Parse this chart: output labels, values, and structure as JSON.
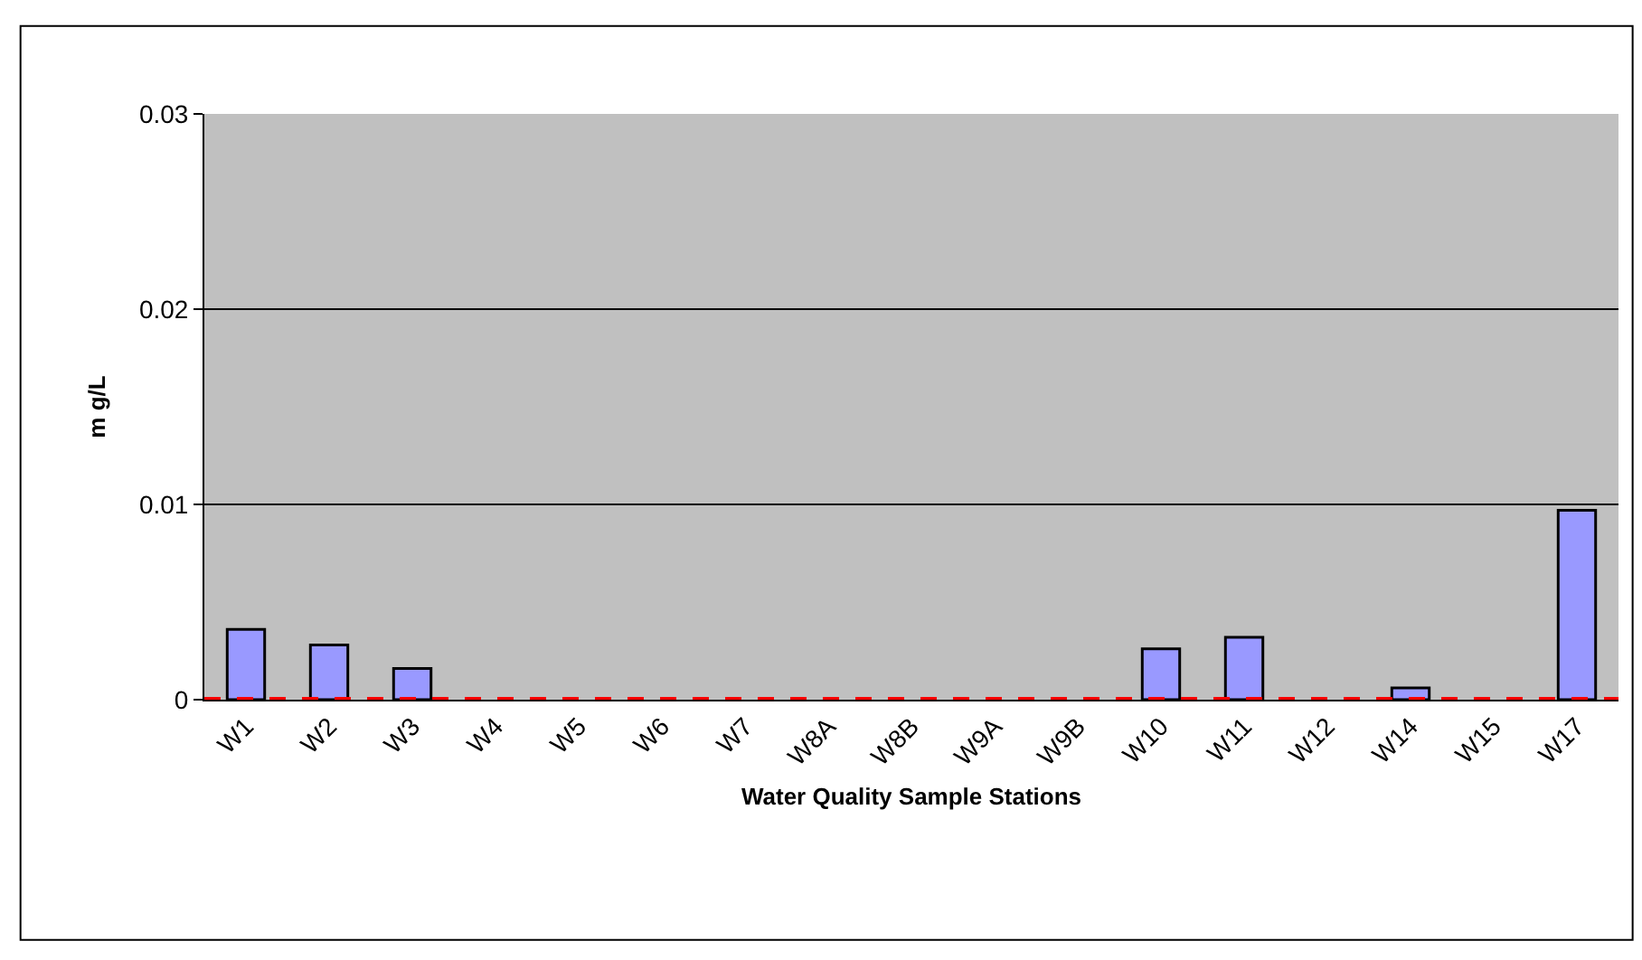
{
  "chart_data": {
    "type": "bar",
    "xlabel": "Water Quality Sample Stations",
    "ylabel": "m g/L",
    "categories": [
      "W1",
      "W2",
      "W3",
      "W4",
      "W5",
      "W6",
      "W7",
      "W8A",
      "W8B",
      "W9A",
      "W9B",
      "W10",
      "W11",
      "W12",
      "W14",
      "W15",
      "W17"
    ],
    "values": [
      0.0036,
      0.0028,
      0.0016,
      0,
      0,
      0,
      0,
      0,
      0,
      0,
      0,
      0.0026,
      0.0032,
      0,
      0.0006,
      0,
      0.0097
    ],
    "color": "#9999ff",
    "ylim": [
      0,
      0.03
    ],
    "yticks": [
      0,
      0.01,
      0.02,
      0.03
    ],
    "grid": "y",
    "legend": false,
    "ref_lines": [
      {
        "axis": "y",
        "value": 0,
        "color": "#ff0000",
        "line_style": "dashed"
      }
    ]
  }
}
